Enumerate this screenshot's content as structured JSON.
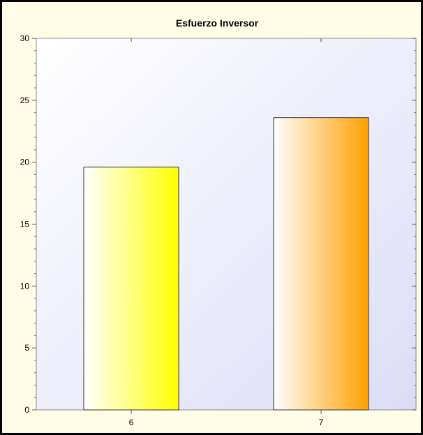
{
  "chart_data": {
    "type": "bar",
    "title": "Esfuerzo Inversor",
    "xlabel": "",
    "ylabel": "",
    "categories": [
      "6",
      "7"
    ],
    "values": [
      19.6,
      23.6
    ],
    "ylim": [
      0,
      30
    ],
    "yticks": [
      0,
      5,
      10,
      15,
      20,
      25,
      30
    ],
    "grid": false,
    "legend": "none",
    "bar_colors": [
      "#ffff00",
      "#ffa000"
    ],
    "plot_background": [
      "#ffffff",
      "#dcdcf8"
    ],
    "frame_background": "#fffde6"
  }
}
